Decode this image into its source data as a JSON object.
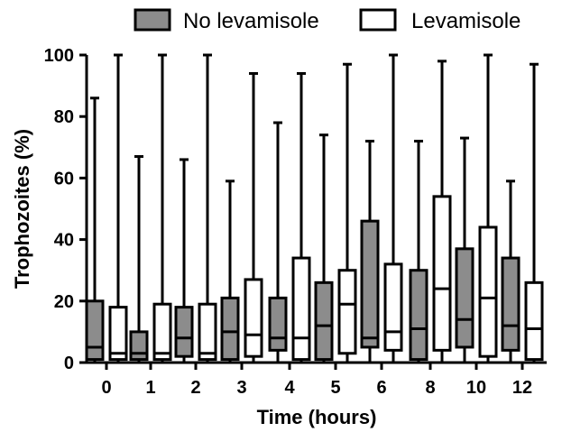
{
  "chart_data": {
    "type": "boxplot",
    "xlabel": "Time  (hours)",
    "ylabel": "Trophozoites (%)",
    "ylim": [
      0,
      100
    ],
    "yticks": [
      0,
      20,
      40,
      60,
      80,
      100
    ],
    "categories": [
      "0",
      "1",
      "2",
      "3",
      "4",
      "5",
      "6",
      "8",
      "10",
      "12"
    ],
    "legend_position": "top",
    "series": [
      {
        "name": "No levamisole",
        "color": "#8c8c8c",
        "boxes": [
          {
            "min": 0,
            "q1": 1,
            "median": 5,
            "q3": 20,
            "max": 86
          },
          {
            "min": 0,
            "q1": 1,
            "median": 3,
            "q3": 10,
            "max": 67
          },
          {
            "min": 0,
            "q1": 2,
            "median": 8,
            "q3": 18,
            "max": 66
          },
          {
            "min": 0,
            "q1": 1,
            "median": 10,
            "q3": 21,
            "max": 59
          },
          {
            "min": 0,
            "q1": 4,
            "median": 8,
            "q3": 21,
            "max": 78
          },
          {
            "min": 0,
            "q1": 1,
            "median": 12,
            "q3": 26,
            "max": 74
          },
          {
            "min": 0,
            "q1": 5,
            "median": 8,
            "q3": 46,
            "max": 72
          },
          {
            "min": 0,
            "q1": 1,
            "median": 11,
            "q3": 30,
            "max": 72
          },
          {
            "min": 0,
            "q1": 5,
            "median": 14,
            "q3": 37,
            "max": 73
          },
          {
            "min": 0,
            "q1": 4,
            "median": 12,
            "q3": 34,
            "max": 59
          }
        ]
      },
      {
        "name": "Levamisole",
        "color": "#ffffff",
        "boxes": [
          {
            "min": 0,
            "q1": 1,
            "median": 3,
            "q3": 18,
            "max": 100
          },
          {
            "min": 0,
            "q1": 1,
            "median": 3,
            "q3": 19,
            "max": 100
          },
          {
            "min": 0,
            "q1": 1,
            "median": 3,
            "q3": 19,
            "max": 100
          },
          {
            "min": 0,
            "q1": 2,
            "median": 9,
            "q3": 27,
            "max": 94
          },
          {
            "min": 0,
            "q1": 1,
            "median": 8,
            "q3": 34,
            "max": 94
          },
          {
            "min": 0,
            "q1": 3,
            "median": 19,
            "q3": 30,
            "max": 97
          },
          {
            "min": 0,
            "q1": 4,
            "median": 10,
            "q3": 32,
            "max": 100
          },
          {
            "min": 0,
            "q1": 4,
            "median": 24,
            "q3": 54,
            "max": 98
          },
          {
            "min": 0,
            "q1": 2,
            "median": 21,
            "q3": 44,
            "max": 100
          },
          {
            "min": 0,
            "q1": 1,
            "median": 11,
            "q3": 26,
            "max": 97
          }
        ]
      }
    ]
  }
}
